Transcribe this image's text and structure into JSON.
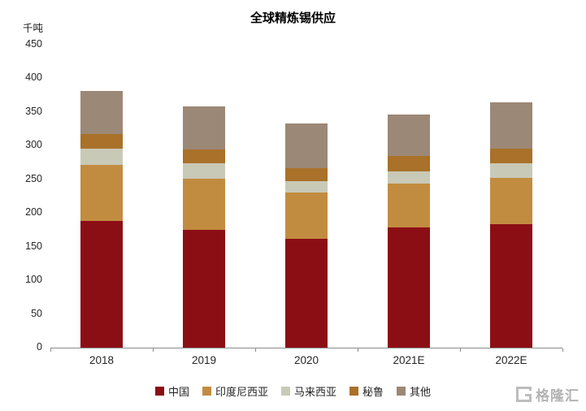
{
  "chart_data": {
    "type": "bar",
    "stacked": true,
    "title": "全球精炼锡供应",
    "ylabel": "千吨",
    "categories": [
      "2018",
      "2019",
      "2020",
      "2021E",
      "2022E"
    ],
    "series": [
      {
        "name": "中国",
        "color": "#8C0E15",
        "values": [
          188,
          175,
          162,
          179,
          183
        ]
      },
      {
        "name": "印度尼西亚",
        "color": "#C28C40",
        "values": [
          84,
          76,
          69,
          65,
          69
        ]
      },
      {
        "name": "马来西亚",
        "color": "#C9C9B7",
        "values": [
          23,
          23,
          16,
          18,
          22
        ]
      },
      {
        "name": "秘鲁",
        "color": "#A97129",
        "values": [
          22,
          20,
          20,
          23,
          22
        ]
      },
      {
        "name": "其他",
        "color": "#9C8876",
        "values": [
          64,
          64,
          66,
          61,
          68
        ]
      }
    ],
    "totals": [
      381,
      358,
      333,
      346,
      364
    ],
    "ylim": [
      0,
      450
    ],
    "ytick_step": 50,
    "grid": false,
    "legend_position": "bottom"
  },
  "watermark": {
    "text": "格隆汇",
    "icon": "gelonghui-g-icon"
  }
}
